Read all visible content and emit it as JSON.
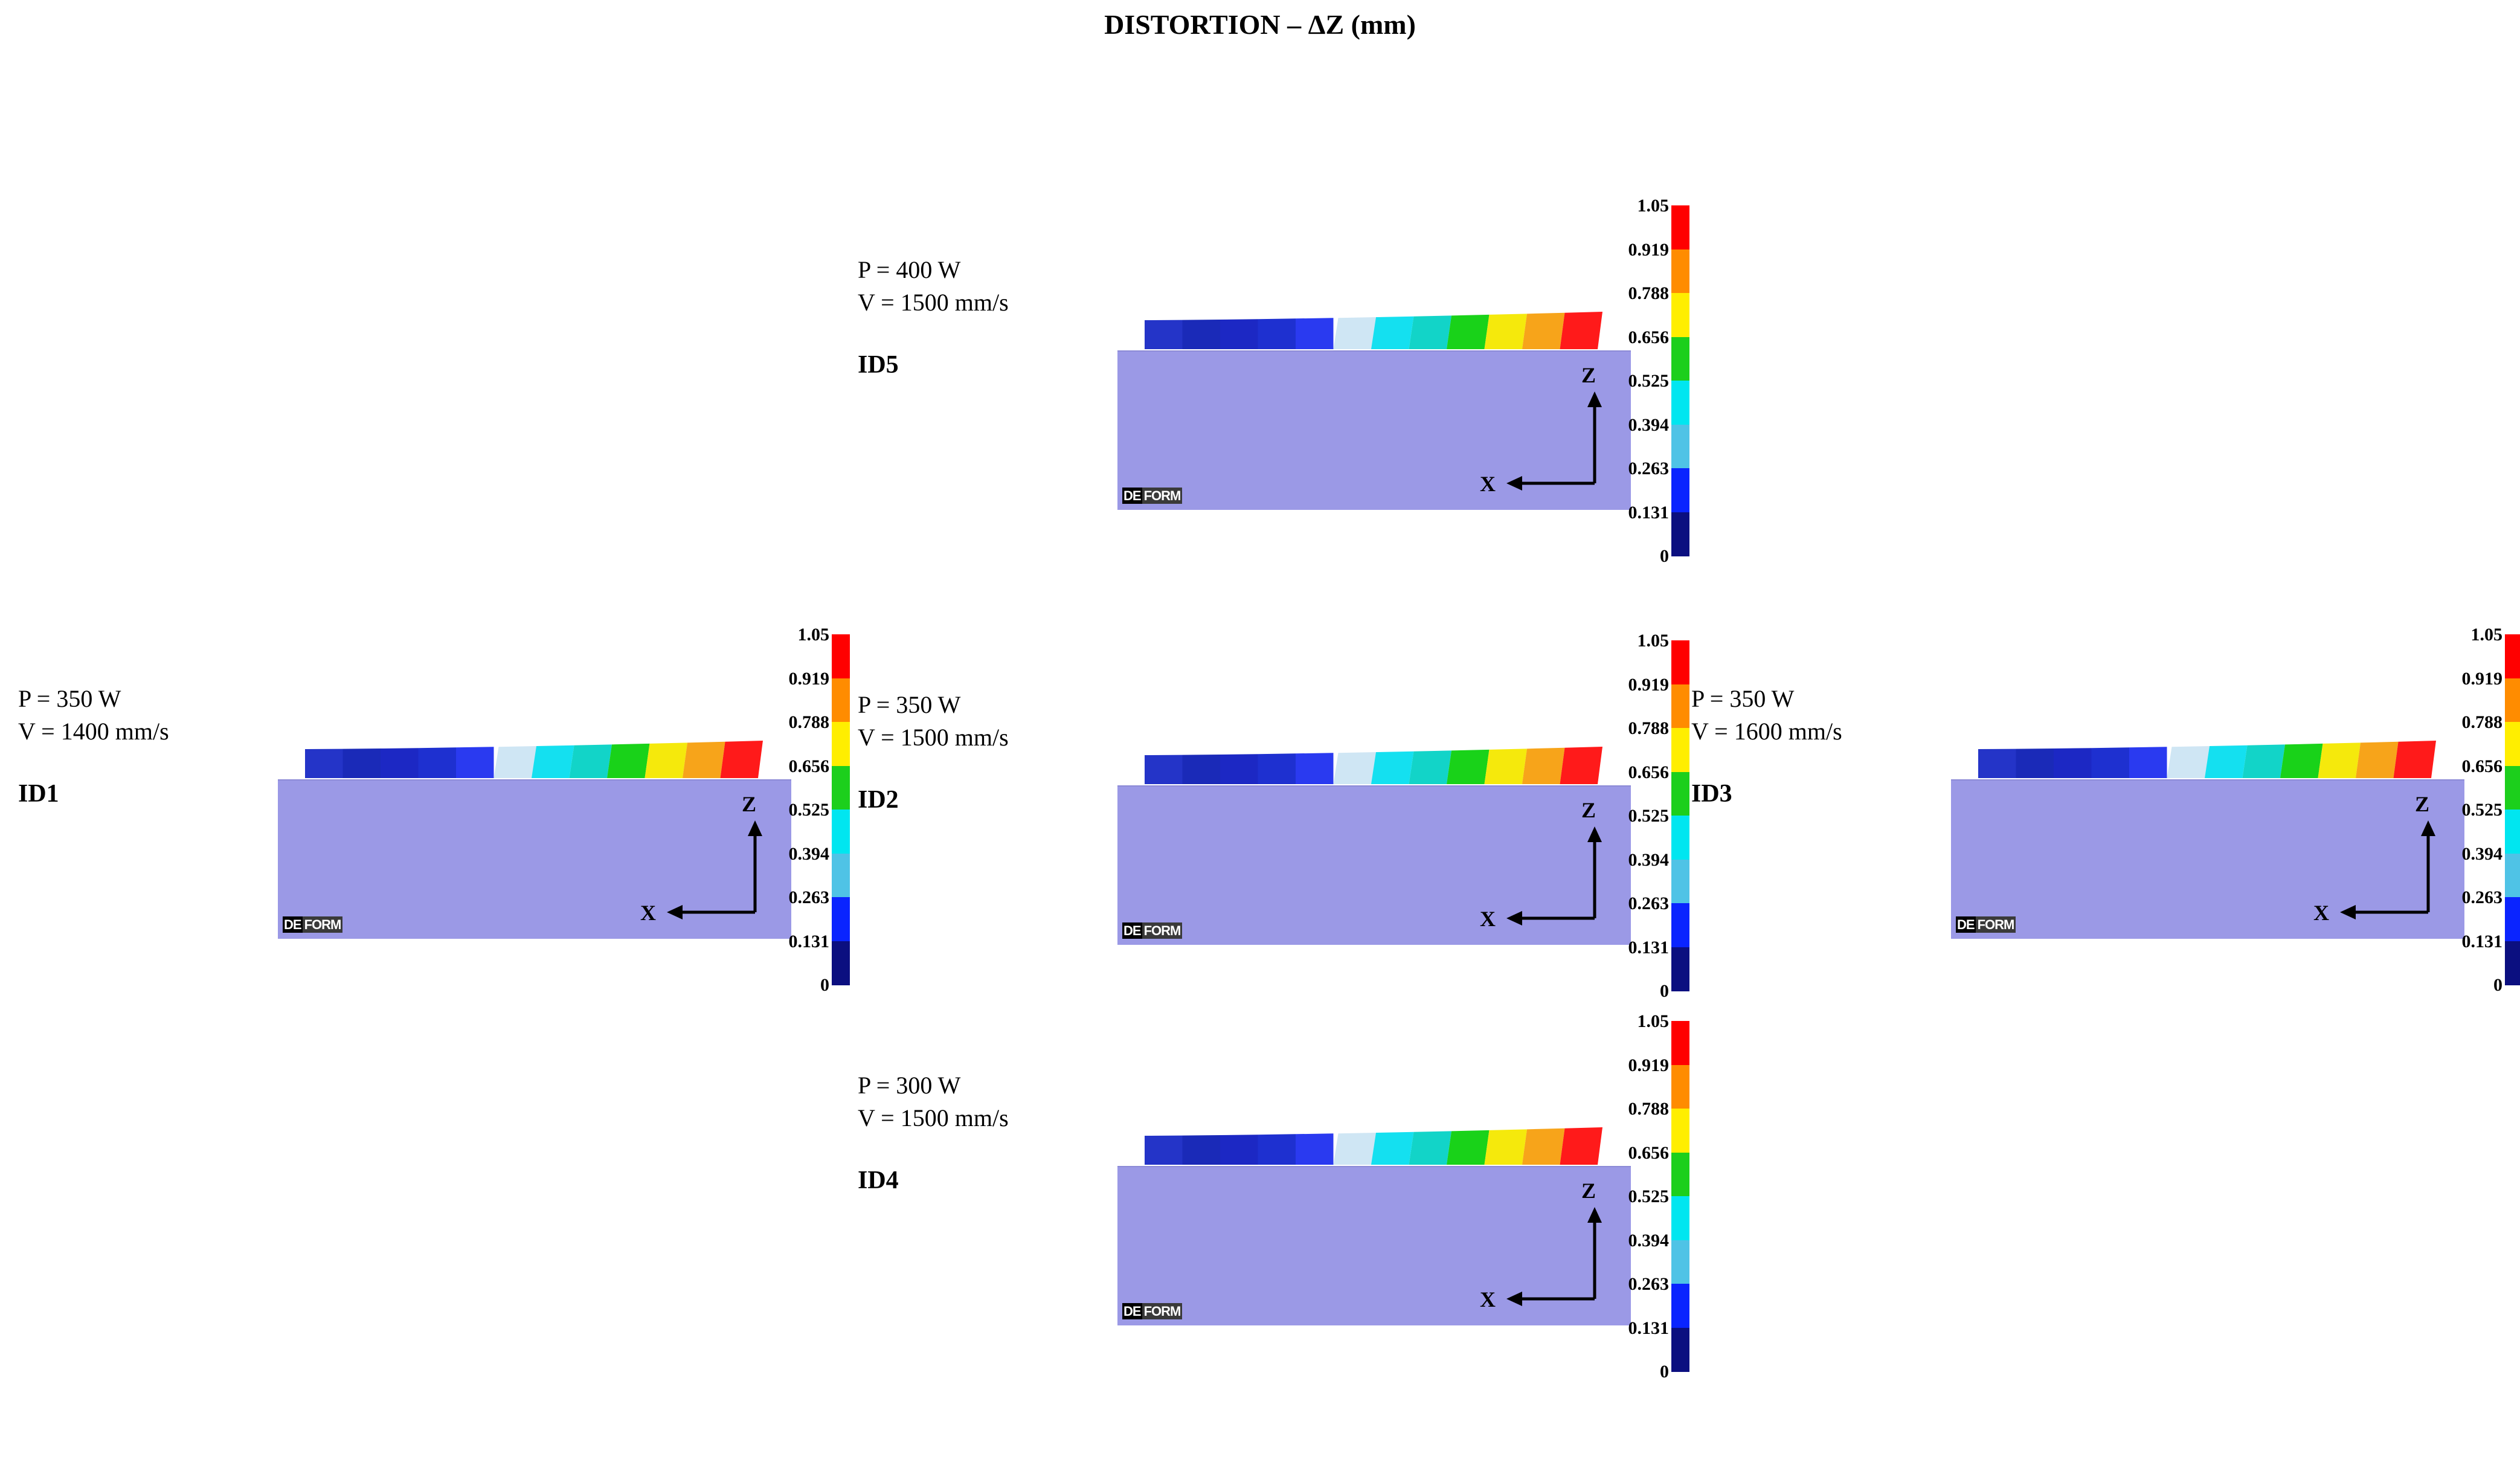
{
  "title": "DISTORTION – ΔZ (mm)",
  "colorbar": {
    "ticks": [
      "1.05",
      "0.919",
      "0.788",
      "0.656",
      "0.525",
      "0.394",
      "0.263",
      "0.131",
      "0"
    ],
    "colors": [
      "#ff0000",
      "#ff8c00",
      "#ffee00",
      "#1ccf1c",
      "#00e6f0",
      "#4fc3e6",
      "#0a24ff",
      "#0b0f80"
    ]
  },
  "strip_colors": [
    "#2434c8",
    "#1a2ab8",
    "#1c28c4",
    "#1e30d0",
    "#2a3af0",
    "#cfe6f4",
    "#14e0f0",
    "#12d4c8",
    "#19d219",
    "#f5e90c",
    "#f7a41a",
    "#ff1a1a"
  ],
  "axis": {
    "x": "X",
    "z": "Z"
  },
  "logo": {
    "left": "DE",
    "right": "FORM"
  },
  "panels": [
    {
      "id": "ID5",
      "power": "P = 400 W",
      "speed": "V = 1500 mm/s"
    },
    {
      "id": "ID1",
      "power": "P = 350 W",
      "speed": "V = 1400 mm/s"
    },
    {
      "id": "ID2",
      "power": "P = 350 W",
      "speed": "V = 1500 mm/s"
    },
    {
      "id": "ID3",
      "power": "P = 350 W",
      "speed": "V = 1600 mm/s"
    },
    {
      "id": "ID4",
      "power": "P = 300 W",
      "speed": "V = 1500 mm/s"
    }
  ]
}
